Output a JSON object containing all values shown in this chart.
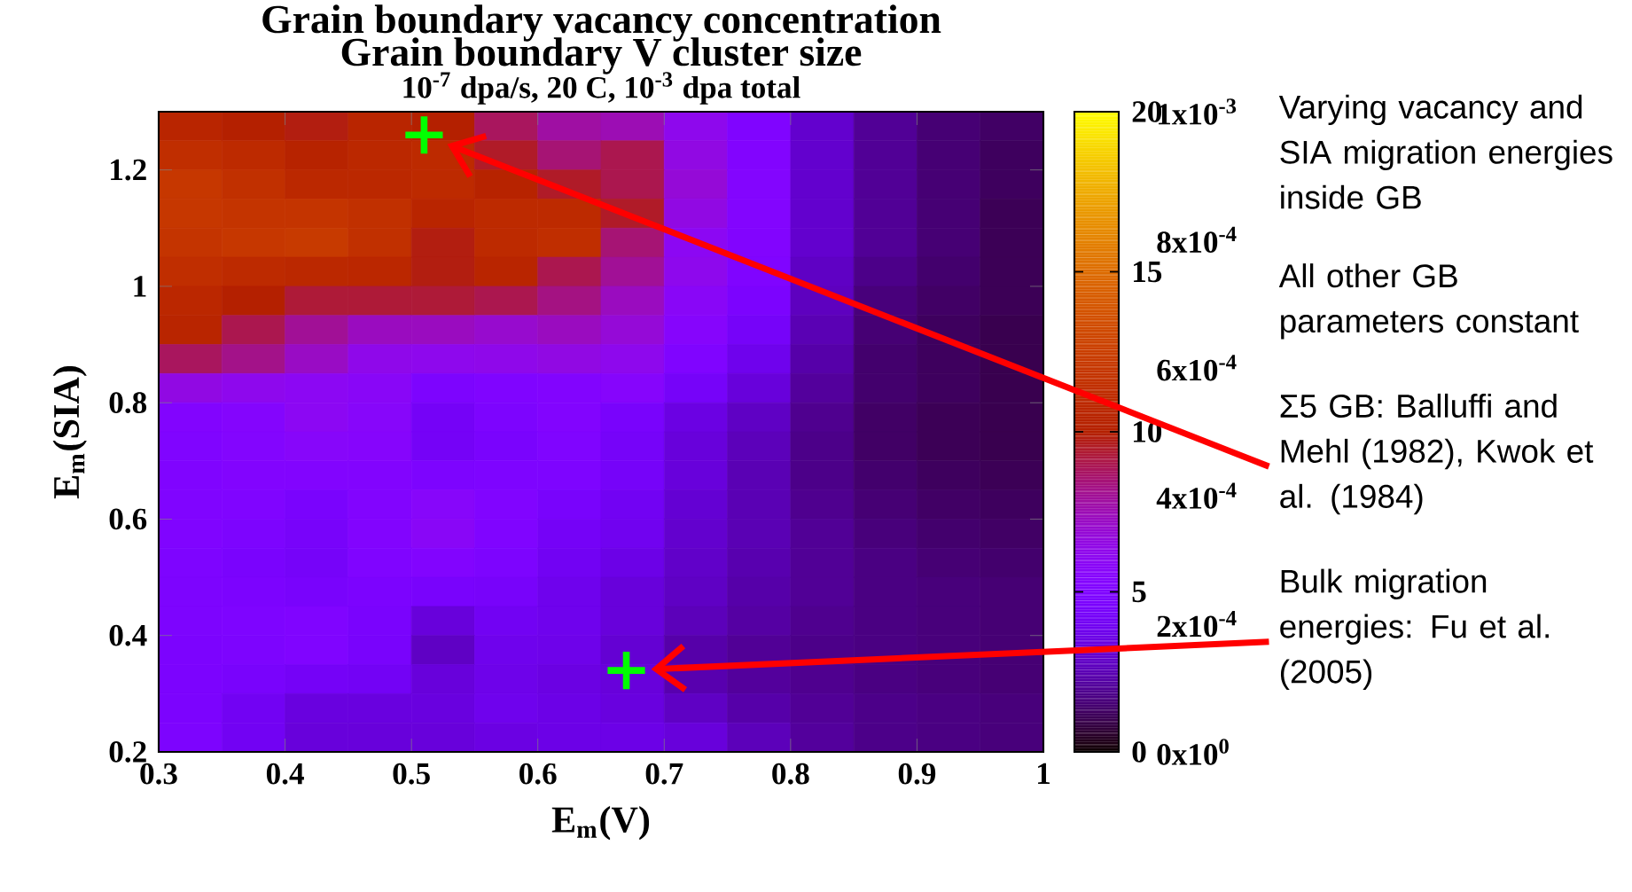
{
  "chart_data": {
    "type": "heatmap",
    "title": "Grain boundary vacancy concentration",
    "subtitle": "10$^{-7}$ dpa/s, 20 C, 10$^{-3}$ dpa total",
    "xlabel": "E$_{m}$(V)",
    "ylabel": "E$_{m}$(SIA)",
    "x": [
      0.325,
      0.375,
      0.425,
      0.475,
      0.525,
      0.575,
      0.625,
      0.675,
      0.725,
      0.775,
      0.825,
      0.875,
      0.925,
      0.975
    ],
    "y": [
      1.275,
      1.225,
      1.175,
      1.125,
      1.075,
      1.025,
      0.975,
      0.925,
      0.875,
      0.825,
      0.775,
      0.725,
      0.675,
      0.625,
      0.575,
      0.525,
      0.475,
      0.425,
      0.375,
      0.325,
      0.275,
      0.225
    ],
    "xlim": [
      0.3,
      1.0
    ],
    "ylim": [
      0.2,
      1.3
    ],
    "xticks": [
      0.3,
      0.4,
      0.5,
      0.6,
      0.7,
      0.8,
      0.9,
      1
    ],
    "yticks": [
      0.2,
      0.4,
      0.6,
      0.8,
      1,
      1.2
    ],
    "clim": [
      0,
      20
    ],
    "cticks": [
      0,
      5,
      10,
      15,
      20
    ],
    "cells": [
      [
        10.5,
        10,
        9.8,
        10.5,
        10,
        8.8,
        7.8,
        7.5,
        6.2,
        5.0,
        3.0,
        2.0,
        1.5,
        1.3
      ],
      [
        11.3,
        11,
        10.3,
        10.8,
        11,
        9.5,
        8.5,
        9,
        6.5,
        5.2,
        3,
        2,
        1.5,
        1.2
      ],
      [
        12,
        11.5,
        10.8,
        10.8,
        11,
        10.3,
        9.5,
        9,
        6.8,
        5.3,
        3,
        2.0,
        1.5,
        1.2
      ],
      [
        12,
        11.8,
        11.8,
        11.5,
        10.5,
        11,
        11,
        9.5,
        6.5,
        5.3,
        3,
        2,
        1.5,
        1.1
      ],
      [
        11.8,
        12,
        12.2,
        11.5,
        9.8,
        11,
        11.3,
        8.5,
        6,
        5.2,
        3,
        2,
        1.5,
        1.1
      ],
      [
        11.3,
        11,
        10.8,
        10.7,
        9.8,
        10.5,
        9,
        8,
        6.2,
        5,
        2.8,
        1.8,
        1.4,
        1.1
      ],
      [
        10.7,
        10,
        9.3,
        9.3,
        9.3,
        9,
        8.3,
        7.3,
        5.8,
        4.7,
        2.7,
        1.6,
        1.3,
        1.1
      ],
      [
        10.5,
        9,
        8,
        7.3,
        7.3,
        7,
        7.3,
        6.8,
        5.5,
        4.3,
        2.5,
        1.5,
        1.2,
        1.0
      ],
      [
        8.8,
        8.2,
        7.2,
        6.3,
        6.2,
        6.3,
        6.5,
        6.2,
        5,
        3.8,
        2.3,
        1.4,
        1.2,
        1.0
      ],
      [
        6.5,
        6.2,
        6,
        5.8,
        4.8,
        5,
        5.2,
        5.5,
        4.3,
        3.3,
        2.1,
        1.4,
        1.2,
        1.0
      ],
      [
        5.2,
        5.4,
        6,
        5.6,
        4.2,
        4.8,
        5.2,
        4.5,
        3.5,
        2.8,
        1.9,
        1.3,
        1.1,
        1.0
      ],
      [
        5,
        5.3,
        5.6,
        5.5,
        4.2,
        4.6,
        5,
        4.3,
        3.3,
        2.6,
        1.8,
        1.3,
        1.1,
        1.0
      ],
      [
        5,
        5.2,
        5.2,
        5.2,
        4.8,
        4.9,
        4.9,
        4.3,
        3.3,
        2.5,
        1.8,
        1.4,
        1.2,
        1.1
      ],
      [
        5,
        5,
        4.6,
        5.2,
        5.6,
        5.1,
        4.5,
        4,
        3.1,
        2.5,
        1.9,
        1.5,
        1.3,
        1.2
      ],
      [
        5,
        4.8,
        4.4,
        5.2,
        5.8,
        5,
        4.2,
        3.9,
        3,
        2.5,
        2,
        1.6,
        1.4,
        1.3
      ],
      [
        4.9,
        4.6,
        4.3,
        5.0,
        5.2,
        4.8,
        4.0,
        3.6,
        2.9,
        2.4,
        2,
        1.7,
        1.5,
        1.4
      ],
      [
        4.8,
        4.7,
        4.5,
        4.7,
        4.5,
        4.4,
        3.8,
        3.3,
        2.8,
        2.3,
        2,
        1.7,
        1.6,
        1.5
      ],
      [
        4.8,
        4.9,
        5.0,
        4.6,
        3.3,
        4.0,
        3.8,
        3.3,
        2.6,
        2.2,
        1.9,
        1.7,
        1.6,
        1.5
      ],
      [
        4.7,
        4.8,
        5.0,
        4.5,
        2.8,
        3.8,
        3.7,
        3.1,
        2.3,
        2.0,
        1.8,
        1.7,
        1.6,
        1.5
      ],
      [
        4.7,
        4.5,
        4.2,
        4.1,
        3.3,
        3.7,
        3.5,
        3.3,
        2.4,
        2.1,
        1.9,
        1.7,
        1.6,
        1.5
      ],
      [
        4.7,
        4.0,
        3.4,
        3.4,
        3.4,
        3.8,
        3.6,
        3.4,
        2.8,
        2.3,
        2,
        1.8,
        1.7,
        1.6
      ],
      [
        4.8,
        4,
        3.3,
        3.3,
        3.3,
        3.5,
        3.6,
        3.6,
        3.3,
        2.6,
        2.1,
        1.8,
        1.7,
        1.6
      ]
    ],
    "series": [
      {
        "type": "scatter",
        "x": [
          0.51,
          0.67
        ],
        "values": [
          1.26,
          0.34
        ],
        "color": "#00ff00"
      }
    ],
    "marker": "cross",
    "annotations": [
      "Grain boundary V cluster size",
      "0x10$^{0}$",
      "2x10$^{-4}$",
      "4x10$^{-4}$",
      "6x10$^{-4}$",
      "8x10$^{-4}$",
      "1x10$^{-3}$",
      "Varying vacancy and SIA migration energies inside GB",
      "All other GB parameters constant",
      "Σ5 GB: Balluffi and Mehl (1982), Kwok et al. (1984)",
      "Bulk migration energies: Fu et al. (2005)"
    ]
  }
}
